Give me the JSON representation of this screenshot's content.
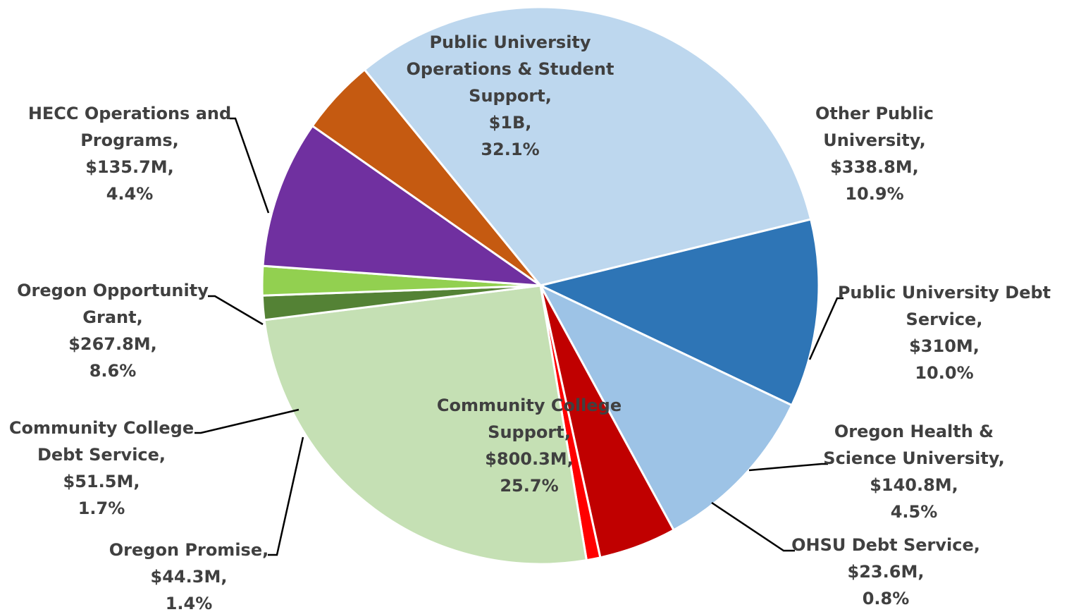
{
  "chart_data": {
    "type": "pie",
    "title": "",
    "slices": [
      {
        "name": "Public University Operations & Student Support",
        "label_lines": [
          "Public University",
          "Operations & Student",
          "Support,",
          "$1B,",
          "32.1%"
        ],
        "amount": "$1B",
        "value": 32.1,
        "color": "#bdd7ee"
      },
      {
        "name": "Other Public University",
        "label_lines": [
          "Other Public",
          "University,",
          "$338.8M,",
          "10.9%"
        ],
        "amount": "$338.8M",
        "value": 10.9,
        "color": "#2e75b6"
      },
      {
        "name": "Public University Debt Service",
        "label_lines": [
          "Public University Debt",
          "Service,",
          "$310M,",
          "10.0%"
        ],
        "amount": "$310M",
        "value": 10.0,
        "color": "#9dc3e6"
      },
      {
        "name": "Oregon Health & Science University",
        "label_lines": [
          "Oregon Health &",
          "Science University,",
          "$140.8M,",
          "4.5%"
        ],
        "amount": "$140.8M",
        "value": 4.5,
        "color": "#c00000"
      },
      {
        "name": "OHSU Debt Service",
        "label_lines": [
          "OHSU Debt Service,",
          "$23.6M,",
          "0.8%"
        ],
        "amount": "$23.6M",
        "value": 0.8,
        "color": "#ff0000"
      },
      {
        "name": "Community College Support",
        "label_lines": [
          "Community College",
          "Support,",
          "$800.3M,",
          "25.7%"
        ],
        "amount": "$800.3M",
        "value": 25.7,
        "color": "#c5e0b4"
      },
      {
        "name": "Oregon Promise",
        "label_lines": [
          "Oregon Promise,",
          "$44.3M,",
          "1.4%"
        ],
        "amount": "$44.3M",
        "value": 1.4,
        "color": "#548235"
      },
      {
        "name": "Community College Debt Service",
        "label_lines": [
          "Community College",
          "Debt Service,",
          "$51.5M,",
          "1.7%"
        ],
        "amount": "$51.5M",
        "value": 1.7,
        "color": "#92d050"
      },
      {
        "name": "Oregon Opportunity Grant",
        "label_lines": [
          "Oregon Opportunity",
          "Grant,",
          "$267.8M,",
          "8.6%"
        ],
        "amount": "$267.8M",
        "value": 8.6,
        "color": "#7030a0"
      },
      {
        "name": "HECC Operations and Programs",
        "label_lines": [
          "HECC Operations and",
          "Programs,",
          "$135.7M,",
          "4.4%"
        ],
        "amount": "$135.7M",
        "value": 4.4,
        "color": "#c55a11"
      }
    ]
  }
}
